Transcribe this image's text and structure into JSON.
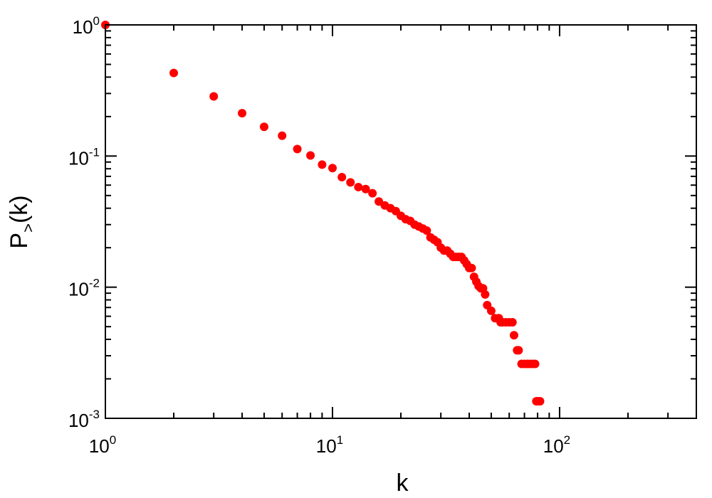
{
  "chart_data": {
    "type": "scatter",
    "title": "",
    "xlabel": "k",
    "ylabel_main": "P",
    "ylabel_sub": ">",
    "ylabel_tail": "(k)",
    "x_scale": "log",
    "y_scale": "log",
    "xlim": [
      1,
      400
    ],
    "ylim": [
      0.001,
      1
    ],
    "grid": false,
    "legend": "none",
    "marker_color": "#ff0000",
    "x_ticks": [
      {
        "base": "10",
        "exp": "0"
      },
      {
        "base": "10",
        "exp": "1"
      },
      {
        "base": "10",
        "exp": "2"
      }
    ],
    "y_ticks": [
      {
        "base": "10",
        "exp": "0"
      },
      {
        "base": "10",
        "exp": "-1"
      },
      {
        "base": "10",
        "exp": "-2"
      },
      {
        "base": "10",
        "exp": "-3"
      }
    ],
    "points": [
      [
        1,
        1.0
      ],
      [
        2,
        0.43
      ],
      [
        3,
        0.285
      ],
      [
        4,
        0.212
      ],
      [
        5,
        0.167
      ],
      [
        6,
        0.143
      ],
      [
        7,
        0.113
      ],
      [
        8,
        0.101
      ],
      [
        9,
        0.086
      ],
      [
        10,
        0.081
      ],
      [
        11,
        0.069
      ],
      [
        12,
        0.063
      ],
      [
        13,
        0.058
      ],
      [
        14,
        0.056
      ],
      [
        15,
        0.052
      ],
      [
        16,
        0.045
      ],
      [
        17,
        0.042
      ],
      [
        18,
        0.04
      ],
      [
        19,
        0.038
      ],
      [
        20,
        0.035
      ],
      [
        21,
        0.033
      ],
      [
        22,
        0.032
      ],
      [
        23,
        0.03
      ],
      [
        24,
        0.029
      ],
      [
        25,
        0.028
      ],
      [
        26,
        0.027
      ],
      [
        27,
        0.024
      ],
      [
        28,
        0.023
      ],
      [
        29,
        0.022
      ],
      [
        30,
        0.02
      ],
      [
        31,
        0.019
      ],
      [
        32,
        0.019
      ],
      [
        33,
        0.018
      ],
      [
        34,
        0.017
      ],
      [
        35,
        0.017
      ],
      [
        36,
        0.017
      ],
      [
        37,
        0.017
      ],
      [
        38,
        0.016
      ],
      [
        39,
        0.015
      ],
      [
        40,
        0.014
      ],
      [
        41,
        0.014
      ],
      [
        42,
        0.012
      ],
      [
        43,
        0.011
      ],
      [
        44,
        0.0102
      ],
      [
        45,
        0.0098
      ],
      [
        46,
        0.0098
      ],
      [
        47,
        0.0088
      ],
      [
        48,
        0.0073
      ],
      [
        50,
        0.0066
      ],
      [
        52,
        0.0058
      ],
      [
        54,
        0.0058
      ],
      [
        55,
        0.0054
      ],
      [
        56,
        0.0054
      ],
      [
        58,
        0.0054
      ],
      [
        60,
        0.0054
      ],
      [
        62,
        0.0054
      ],
      [
        63,
        0.0043
      ],
      [
        65,
        0.0033
      ],
      [
        66,
        0.0033
      ],
      [
        68,
        0.0026
      ],
      [
        70,
        0.0026
      ],
      [
        72,
        0.0026
      ],
      [
        74,
        0.0026
      ],
      [
        76,
        0.0026
      ],
      [
        78,
        0.0026
      ],
      [
        79,
        0.00135
      ],
      [
        80,
        0.00135
      ],
      [
        82,
        0.00135
      ]
    ]
  }
}
